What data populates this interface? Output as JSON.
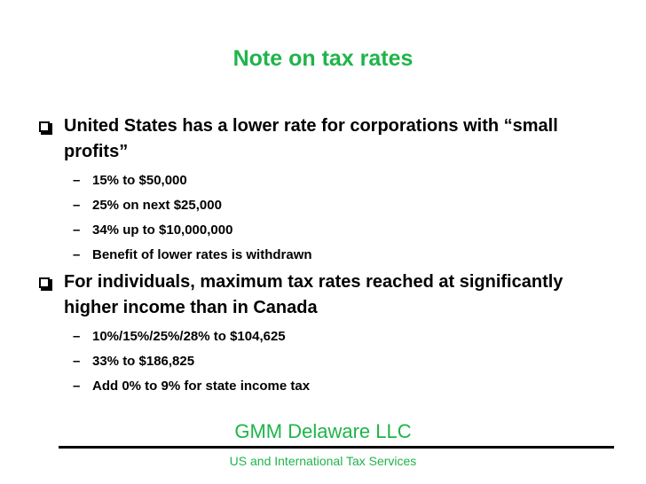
{
  "title": "Note on tax rates",
  "bullets": [
    {
      "text": "United States has a lower rate for corporations with “small profits”",
      "subitems": [
        "15% to $50,000",
        "25% on next $25,000",
        "34% up to $10,000,000",
        "Benefit of lower rates is withdrawn"
      ]
    },
    {
      "text": "For individuals, maximum tax rates reached at significantly higher income than in Canada",
      "subitems": [
        "10%/15%/25%/28% to $104,625",
        "33% to $186,825",
        "Add 0% to 9% for state income tax"
      ]
    }
  ],
  "footer": {
    "company": "GMM Delaware LLC",
    "tagline": "US and International Tax Services"
  },
  "colors": {
    "accent": "#1fb44a",
    "text": "#000000"
  },
  "icons": {
    "bullet": "checkbox-bullet-icon",
    "sub_bullet": "dash"
  }
}
